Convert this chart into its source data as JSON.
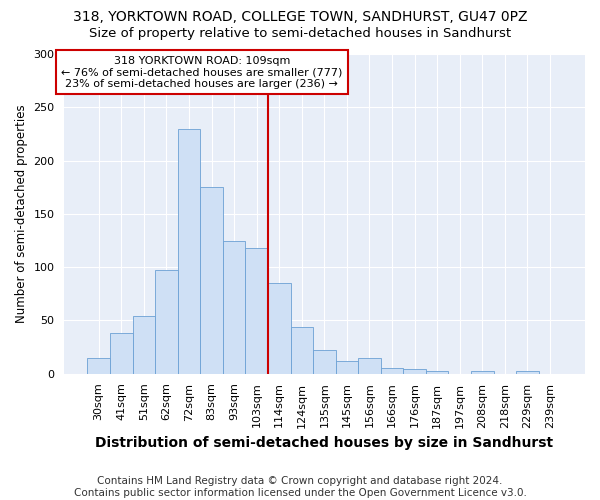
{
  "title": "318, YORKTOWN ROAD, COLLEGE TOWN, SANDHURST, GU47 0PZ",
  "subtitle": "Size of property relative to semi-detached houses in Sandhurst",
  "xlabel": "Distribution of semi-detached houses by size in Sandhurst",
  "ylabel": "Number of semi-detached properties",
  "categories": [
    "30sqm",
    "41sqm",
    "51sqm",
    "62sqm",
    "72sqm",
    "83sqm",
    "93sqm",
    "103sqm",
    "114sqm",
    "124sqm",
    "135sqm",
    "145sqm",
    "156sqm",
    "166sqm",
    "176sqm",
    "187sqm",
    "197sqm",
    "208sqm",
    "218sqm",
    "229sqm",
    "239sqm"
  ],
  "values": [
    15,
    38,
    54,
    97,
    230,
    175,
    124,
    118,
    85,
    44,
    22,
    12,
    15,
    5,
    4,
    2,
    0,
    2,
    0,
    2
  ],
  "bar_color": "#cfe0f5",
  "bar_edge_color": "#6ba0d4",
  "vline_color": "#cc0000",
  "annotation_title": "318 YORKTOWN ROAD: 109sqm",
  "annotation_line1": "← 76% of semi-detached houses are smaller (777)",
  "annotation_line2": "23% of semi-detached houses are larger (236) →",
  "annotation_box_color": "#ffffff",
  "annotation_box_edge": "#cc0000",
  "ylim": [
    0,
    300
  ],
  "yticks": [
    0,
    50,
    100,
    150,
    200,
    250,
    300
  ],
  "background_color": "#e8eef8",
  "grid_color": "#ffffff",
  "footer": "Contains HM Land Registry data © Crown copyright and database right 2024.\nContains public sector information licensed under the Open Government Licence v3.0.",
  "title_fontsize": 10,
  "subtitle_fontsize": 9.5,
  "xlabel_fontsize": 10,
  "ylabel_fontsize": 8.5,
  "tick_fontsize": 8,
  "footer_fontsize": 7.5
}
